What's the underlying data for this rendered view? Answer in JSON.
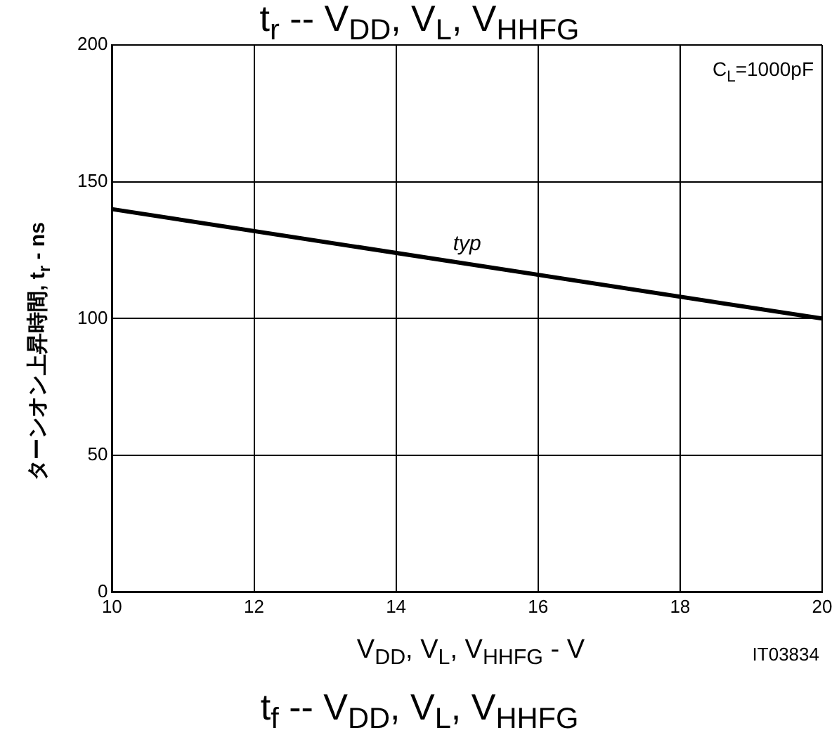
{
  "chart_data": {
    "type": "line",
    "title": "t$_{r}$ -- V$_{DD}$, V$_{L}$, V$_{HHFG}$",
    "xlabel": "V$_{DD}$, V$_{L}$, V$_{HHFG}$ - V",
    "ylabel": "ターンオン上昇時間, t$_{r}$ - ns",
    "x": [
      10,
      20
    ],
    "series": [
      {
        "name": "typ",
        "color": "#000000",
        "values": [
          140,
          100
        ]
      }
    ],
    "xlim": [
      10,
      20
    ],
    "xticks": [
      10,
      12,
      14,
      16,
      18,
      20
    ],
    "ylim": [
      0,
      200
    ],
    "yticks": [
      0,
      50,
      100,
      150,
      200
    ],
    "grid": true,
    "legend": false,
    "marker": "none",
    "line_style": "solid",
    "annotations": [
      "C$_{L}$=1000pF",
      "IT03834",
      "t$_{f}$ -- V$_{DD}$, V$_{L}$, V$_{HHFG}$"
    ]
  }
}
